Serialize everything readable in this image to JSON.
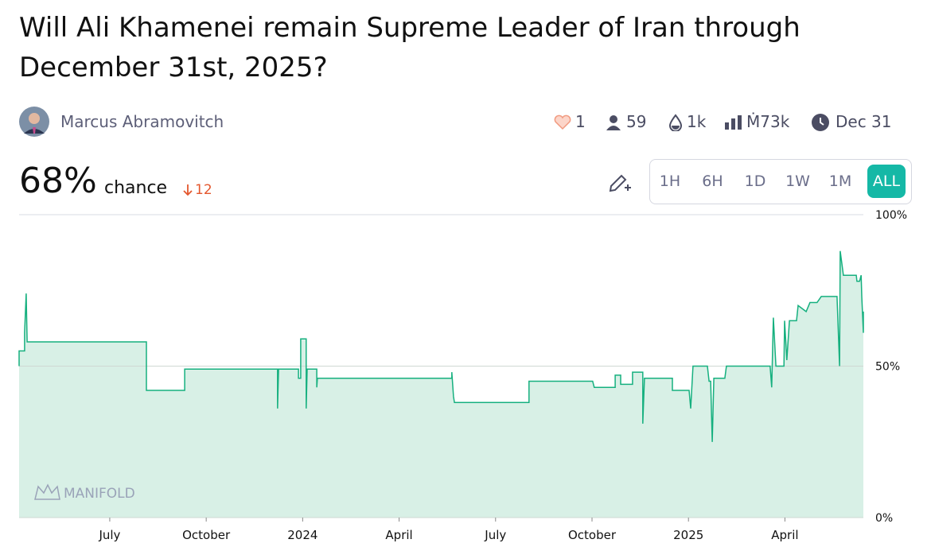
{
  "header": {
    "title": "Will Ali Khamenei remain Supreme Leader of Iran through December 31st, 2025?",
    "author": "Marcus Abramovitch"
  },
  "stats": {
    "likes": "1",
    "traders": "59",
    "liquidity": "1k",
    "volume": "Ṁ73k",
    "close_date": "Dec 31"
  },
  "probability": {
    "value": "68%",
    "label": "chance",
    "change": "12"
  },
  "time_buttons": [
    "1H",
    "6H",
    "1D",
    "1W",
    "1M",
    "ALL"
  ],
  "watermark": "MANIFOLD",
  "chart_data": {
    "type": "line",
    "color": "#16b07f",
    "fill": "#d8f0e6",
    "x": [
      3.18,
      3.18,
      3.35,
      3.35,
      3.4,
      3.43,
      7.14,
      7.14,
      8.33,
      8.33,
      11.22,
      11.22,
      11.25,
      11.87,
      11.87,
      11.94,
      11.94,
      12.11,
      12.11,
      12.14,
      12.44,
      12.44,
      12.46,
      16.64,
      16.64,
      16.69,
      16.72,
      19.04,
      19.04,
      21.02,
      21.07,
      21.72,
      21.72,
      21.89,
      21.89,
      22.26,
      22.26,
      22.58,
      22.58,
      22.63,
      23.5,
      23.5,
      24.02,
      24.07,
      24.14,
      24.59,
      24.64,
      24.69,
      24.74,
      24.79,
      25.13,
      25.18,
      26.54,
      26.59,
      26.64,
      26.72,
      26.97,
      26.99,
      27.06,
      27.14,
      27.36,
      27.41,
      27.66,
      27.78,
      28.0,
      28.13,
      28.62,
      28.7,
      28.72,
      28.82,
      29.22,
      29.24,
      29.32,
      29.37,
      29.39,
      29.44,
      29.44
    ],
    "values": [
      50,
      55,
      55,
      61,
      74,
      58,
      58,
      42,
      42,
      49,
      49,
      36,
      49,
      49,
      46,
      46,
      59,
      59,
      36,
      49,
      49,
      43,
      46,
      46,
      48,
      40,
      38,
      38,
      45,
      45,
      43,
      43,
      47,
      47,
      44,
      44,
      48,
      48,
      31,
      46,
      46,
      42,
      42,
      36,
      50,
      50,
      45,
      45,
      25,
      46,
      46,
      50,
      50,
      43,
      66,
      50,
      50,
      65,
      52,
      65,
      65,
      70,
      68,
      71,
      71,
      73,
      73,
      50,
      88,
      80,
      80,
      78,
      78,
      80,
      73,
      61,
      68
    ],
    "xlim": [
      3.18,
      29.44
    ],
    "xticks": [
      {
        "value": 6,
        "label": "July"
      },
      {
        "value": 9,
        "label": "October"
      },
      {
        "value": 12,
        "label": "2024"
      },
      {
        "value": 15,
        "label": "April"
      },
      {
        "value": 18,
        "label": "July"
      },
      {
        "value": 21,
        "label": "October"
      },
      {
        "value": 24,
        "label": "2025"
      },
      {
        "value": 27,
        "label": "April"
      }
    ],
    "ylim": [
      0,
      100
    ],
    "yticks": [
      {
        "value": 0,
        "label": "0%"
      },
      {
        "value": 50,
        "label": "50%"
      },
      {
        "value": 100,
        "label": "100%"
      }
    ]
  }
}
